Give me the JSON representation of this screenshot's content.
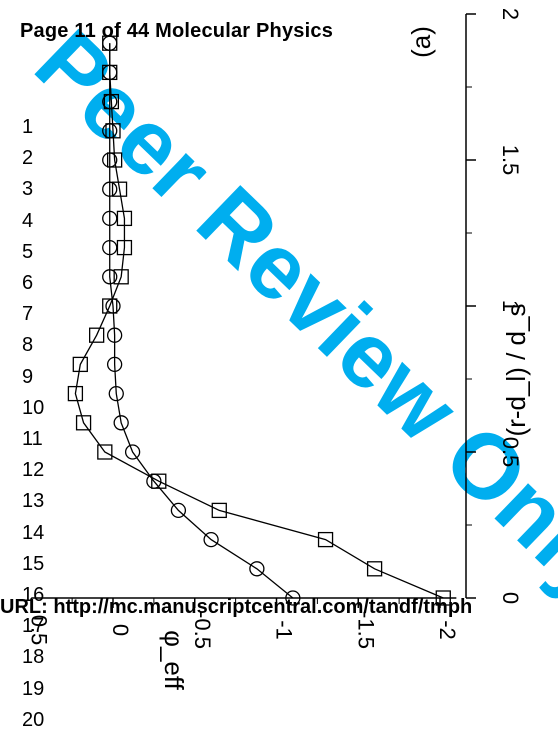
{
  "page_header": "Page 11 of 44 Molecular Physics",
  "watermark": "Peer Review Only",
  "footer_url": "URL: http://mc.manuscriptcentral.com/tandf/tmph",
  "line_numbers": [
    "1",
    "2",
    "3",
    "4",
    "5",
    "6",
    "7",
    "8",
    "9",
    "10",
    "11",
    "12",
    "13",
    "14",
    "15",
    "16",
    "17",
    "18",
    "19",
    "20"
  ],
  "colors": {
    "watermark": "#00aeef",
    "ink": "#000000"
  },
  "chart_data": {
    "type": "line",
    "panel_label": "(a)",
    "xlabel": "(r-d_l) / d_s",
    "ylabel": "φ_eff",
    "xlim": [
      0,
      2
    ],
    "ylim": [
      -2.1,
      0.5
    ],
    "xticks": [
      "0",
      "0.5",
      "1",
      "1.5",
      "2"
    ],
    "yticks": [
      "0.5",
      "0",
      "-0.5",
      "-1",
      "-1.5",
      "-2"
    ],
    "series": [
      {
        "marker": "circle",
        "x": [
          0.0,
          0.1,
          0.2,
          0.3,
          0.4,
          0.5,
          0.6,
          0.7,
          0.8,
          0.9,
          1.0,
          1.1,
          1.2,
          1.3,
          1.4,
          1.5,
          1.6,
          1.7,
          1.8,
          1.9
        ],
        "y": [
          -1.1,
          -0.88,
          -0.6,
          -0.4,
          -0.25,
          -0.12,
          -0.05,
          -0.02,
          -0.01,
          -0.01,
          0.0,
          0.02,
          0.02,
          0.02,
          0.02,
          0.02,
          0.02,
          0.02,
          0.02,
          0.02
        ]
      },
      {
        "marker": "square",
        "x": [
          0.0,
          0.1,
          0.2,
          0.3,
          0.4,
          0.5,
          0.6,
          0.7,
          0.8,
          0.9,
          1.0,
          1.1,
          1.2,
          1.3,
          1.4,
          1.5,
          1.6,
          1.7,
          1.8,
          1.9
        ],
        "y": [
          -2.02,
          -1.6,
          -1.3,
          -0.65,
          -0.28,
          0.05,
          0.18,
          0.23,
          0.2,
          0.1,
          0.02,
          -0.05,
          -0.07,
          -0.07,
          -0.04,
          -0.01,
          0.0,
          0.01,
          0.02,
          0.02
        ]
      }
    ]
  }
}
